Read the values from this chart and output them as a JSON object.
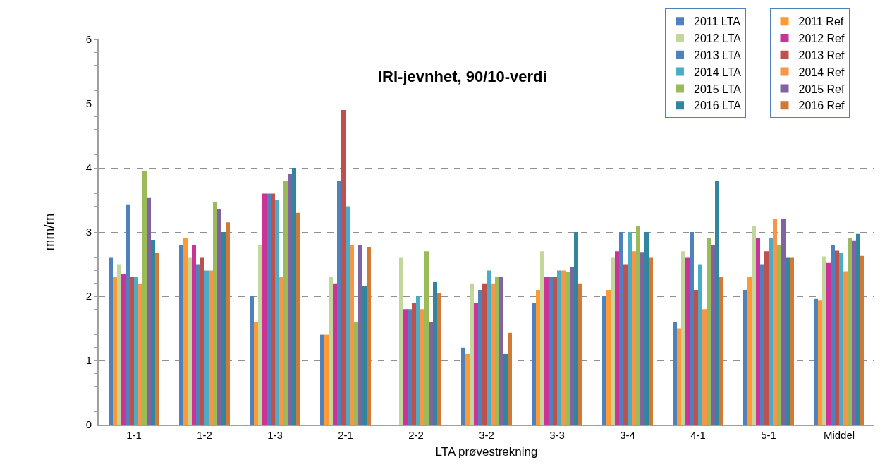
{
  "chart_data": {
    "type": "bar",
    "title": "IRI-jevnhet, 90/10-verdi",
    "xlabel": "LTA prøvestrekning",
    "ylabel": "mm/m",
    "categories": [
      "1-1",
      "1-2",
      "1-3",
      "2-1",
      "2-2",
      "3-2",
      "3-3",
      "3-4",
      "4-1",
      "5-1",
      "Middel"
    ],
    "ylim": [
      0,
      6
    ],
    "yticks": [
      0,
      1,
      2,
      3,
      4,
      5,
      6
    ],
    "grid": "y",
    "legend": "top right",
    "series": [
      {
        "name": "2011 LTA",
        "color": "#4f81bd",
        "values": [
          2.6,
          2.8,
          2.0,
          1.4,
          null,
          1.2,
          1.9,
          2.0,
          1.6,
          2.1,
          1.96
        ]
      },
      {
        "name": "2011 Ref",
        "color": "#ff9933",
        "values": [
          2.3,
          2.9,
          1.6,
          1.4,
          null,
          1.1,
          2.1,
          2.1,
          1.5,
          2.3,
          1.93
        ]
      },
      {
        "name": "2012 LTA",
        "color": "#c3d69b",
        "values": [
          2.5,
          2.6,
          2.8,
          2.3,
          2.6,
          2.2,
          2.7,
          2.6,
          2.7,
          3.1,
          2.62
        ]
      },
      {
        "name": "2012 Ref",
        "color": "#cc3399",
        "values": [
          2.35,
          2.8,
          3.6,
          2.2,
          1.8,
          1.9,
          2.3,
          2.7,
          2.6,
          2.9,
          2.52
        ]
      },
      {
        "name": "2013 LTA",
        "color": "#4f81bd",
        "values": [
          3.43,
          2.5,
          3.6,
          3.8,
          1.8,
          2.1,
          2.3,
          3.0,
          3.0,
          2.5,
          2.8
        ]
      },
      {
        "name": "2013 Ref",
        "color": "#c0504d",
        "values": [
          2.3,
          2.6,
          3.6,
          4.9,
          1.9,
          2.2,
          2.3,
          2.5,
          2.1,
          2.7,
          2.71
        ]
      },
      {
        "name": "2014 LTA",
        "color": "#4bacc6",
        "values": [
          2.3,
          2.4,
          3.5,
          3.4,
          2.0,
          2.4,
          2.4,
          3.0,
          2.5,
          2.9,
          2.68
        ]
      },
      {
        "name": "2014 Ref",
        "color": "#f79646",
        "values": [
          2.2,
          2.4,
          2.3,
          2.8,
          1.8,
          2.2,
          2.4,
          2.7,
          1.8,
          3.2,
          2.39
        ]
      },
      {
        "name": "2015 LTA",
        "color": "#9bbb59",
        "values": [
          3.95,
          3.47,
          3.8,
          1.6,
          2.7,
          2.3,
          2.38,
          3.1,
          2.9,
          2.8,
          2.91
        ]
      },
      {
        "name": "2015 Ref",
        "color": "#8064a2",
        "values": [
          3.53,
          3.36,
          3.9,
          2.8,
          1.6,
          2.3,
          2.46,
          2.69,
          2.8,
          3.2,
          2.87
        ]
      },
      {
        "name": "2016 LTA",
        "color": "#31859c",
        "values": [
          2.88,
          3.0,
          4.0,
          2.16,
          2.22,
          1.1,
          3.0,
          3.0,
          3.8,
          2.6,
          2.97
        ]
      },
      {
        "name": "2016 Ref",
        "color": "#d07a35",
        "values": [
          2.68,
          3.15,
          3.3,
          2.77,
          2.05,
          1.43,
          2.2,
          2.6,
          2.3,
          2.6,
          2.63
        ]
      }
    ]
  }
}
